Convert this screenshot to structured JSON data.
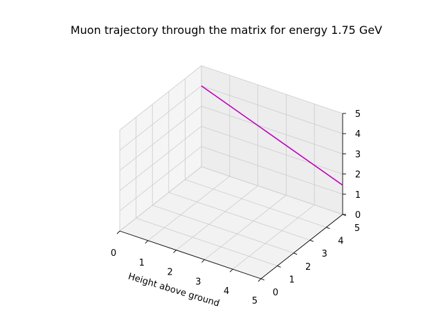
{
  "chart_data": {
    "type": "line",
    "projection": "3d",
    "title": "Muon trajectory through the matrix for energy 1.75 GeV",
    "xlabel": "Height above ground",
    "ylabel": "",
    "zlabel": "",
    "x_ticks": [
      "0",
      "1",
      "2",
      "3",
      "4",
      "5"
    ],
    "y_ticks": [
      "0",
      "1",
      "2",
      "3",
      "4",
      "5"
    ],
    "z_ticks": [
      "0",
      "1",
      "2",
      "3",
      "4",
      "5"
    ],
    "xlim": [
      0,
      5
    ],
    "ylim": [
      0,
      5
    ],
    "zlim": [
      0,
      5
    ],
    "grid": true,
    "series": [
      {
        "color": "#bf00bf",
        "x": [
          0.0,
          5.0
        ],
        "y": [
          5.0,
          5.0
        ],
        "z": [
          4.0,
          1.45
        ]
      }
    ]
  },
  "colors": {
    "pane_left": "#f5f5f5",
    "pane_back": "#ededed",
    "pane_floor": "#f2f2f2",
    "grid": "#cccccc",
    "axis": "#000000"
  }
}
